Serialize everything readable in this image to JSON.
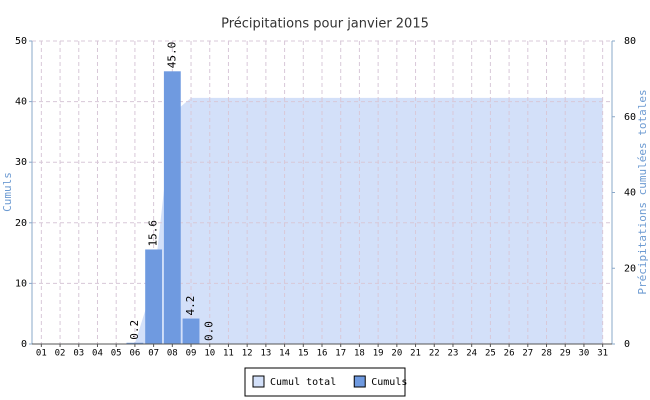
{
  "chart_data": {
    "type": "bar",
    "title": "Précipitations pour janvier 2015",
    "categories": [
      "01",
      "02",
      "03",
      "04",
      "05",
      "06",
      "07",
      "08",
      "09",
      "10",
      "11",
      "12",
      "13",
      "14",
      "15",
      "16",
      "17",
      "18",
      "19",
      "20",
      "21",
      "22",
      "23",
      "24",
      "25",
      "26",
      "27",
      "28",
      "29",
      "30",
      "31"
    ],
    "series": [
      {
        "name": "Cumul total",
        "type": "area",
        "axis": "y2",
        "color": "#d3e0f9",
        "values": [
          null,
          null,
          null,
          null,
          null,
          0.2,
          15.8,
          60.8,
          65.0,
          65.0,
          65.0,
          65.0,
          65.0,
          65.0,
          65.0,
          65.0,
          65.0,
          65.0,
          65.0,
          65.0,
          65.0,
          65.0,
          65.0,
          65.0,
          65.0,
          65.0,
          65.0,
          65.0,
          65.0,
          65.0,
          65.0
        ]
      },
      {
        "name": "Cumuls",
        "type": "bar",
        "color": "#6f9ae0",
        "values": [
          null,
          null,
          null,
          null,
          null,
          0.2,
          15.6,
          45.0,
          4.2,
          0.0,
          null,
          null,
          null,
          null,
          null,
          null,
          null,
          null,
          null,
          null,
          null,
          null,
          null,
          null,
          null,
          null,
          null,
          null,
          null,
          null,
          null
        ],
        "value_labels": [
          null,
          null,
          null,
          null,
          null,
          "0.2",
          "15.6",
          "45.0",
          "4.2",
          "0.0",
          null,
          null,
          null,
          null,
          null,
          null,
          null,
          null,
          null,
          null,
          null,
          null,
          null,
          null,
          null,
          null,
          null,
          null,
          null,
          null,
          null
        ]
      }
    ],
    "ylabel": "Cumuls",
    "y2label": "Précipitations cumulées totales",
    "ylim": [
      0,
      50
    ],
    "yticks": [
      0,
      10,
      20,
      30,
      40,
      50
    ],
    "y2lim": [
      0,
      80
    ],
    "y2ticks": [
      0,
      20,
      40,
      60,
      80
    ],
    "grid": true,
    "legend": "bottom"
  }
}
